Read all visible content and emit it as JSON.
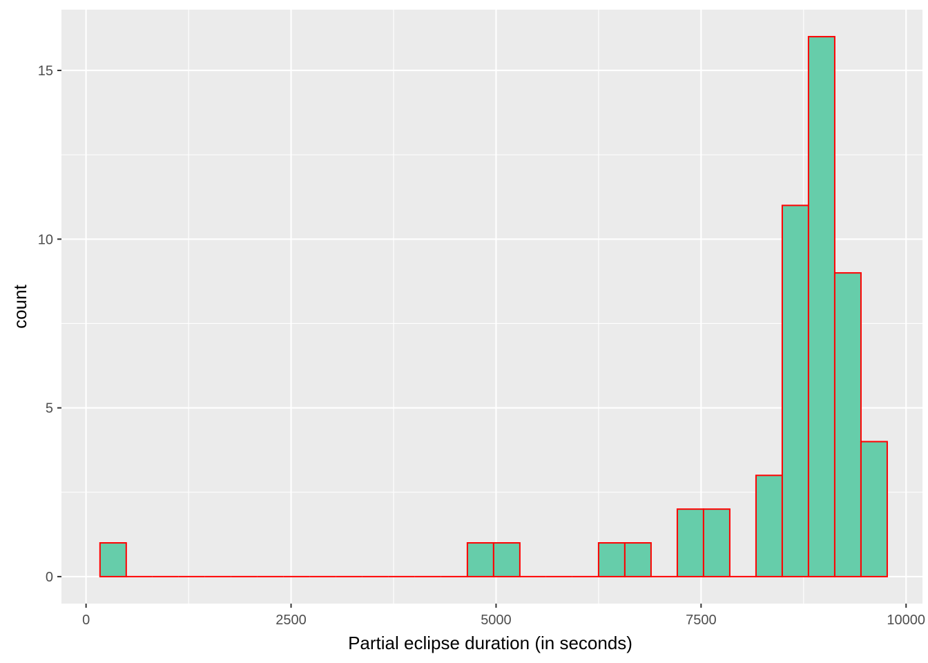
{
  "chart_data": {
    "type": "bar",
    "subtype": "histogram",
    "xlabel": "Partial eclipse duration (in seconds)",
    "ylabel": "count",
    "xlim": [
      -300,
      10200
    ],
    "ylim": [
      -0.8,
      16.8
    ],
    "x_ticks": [
      0,
      2500,
      5000,
      7500,
      10000
    ],
    "x_tick_labels": [
      "0",
      "2500",
      "5000",
      "7500",
      "10000"
    ],
    "x_minor_ticks": [
      1250,
      3750,
      6250,
      8750
    ],
    "y_ticks": [
      0,
      5,
      10,
      15
    ],
    "y_tick_labels": [
      "0",
      "5",
      "10",
      "15"
    ],
    "y_minor_ticks": [
      2.5,
      7.5,
      12.5
    ],
    "bin_width": 320,
    "bin_starts": [
      170,
      490,
      810,
      1130,
      1450,
      1770,
      2090,
      2410,
      2730,
      3050,
      3370,
      3690,
      4010,
      4330,
      4650,
      4970,
      5290,
      5610,
      5930,
      6250,
      6570,
      6890,
      7210,
      7530,
      7850,
      8170,
      8490,
      8810,
      9130,
      9450
    ],
    "counts": [
      1,
      0,
      0,
      0,
      0,
      0,
      0,
      0,
      0,
      0,
      0,
      0,
      0,
      0,
      1,
      1,
      0,
      0,
      0,
      1,
      1,
      0,
      2,
      2,
      0,
      3,
      11,
      16,
      9,
      4
    ],
    "fill_color": "#66cdaa",
    "outline_color": "#ff0000",
    "panel_background": "#ebebeb",
    "grid": true,
    "grid_color": "#ffffff",
    "legend": "none"
  }
}
